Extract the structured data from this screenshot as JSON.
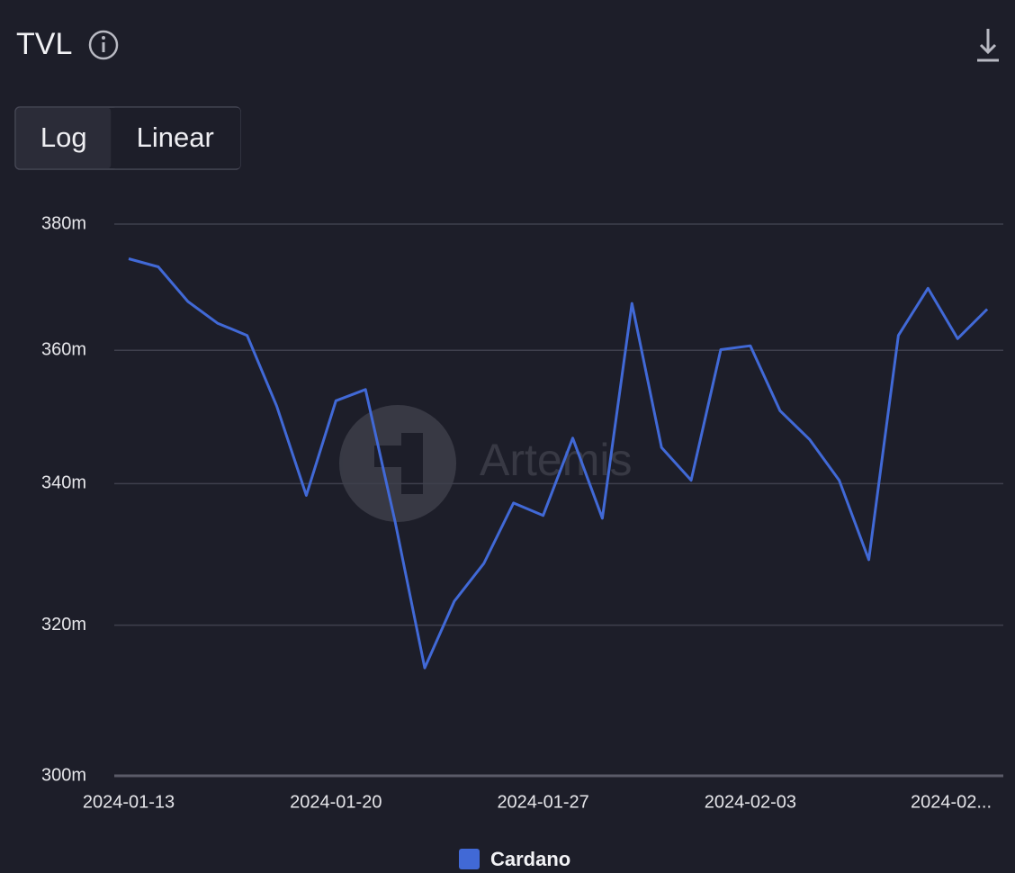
{
  "chart_data": {
    "type": "line",
    "title": "TVL",
    "categories": [
      "2024-01-13",
      "2024-01-14",
      "2024-01-15",
      "2024-01-16",
      "2024-01-17",
      "2024-01-18",
      "2024-01-19",
      "2024-01-20",
      "2024-01-21",
      "2024-01-22",
      "2024-01-23",
      "2024-01-24",
      "2024-01-25",
      "2024-01-26",
      "2024-01-27",
      "2024-01-28",
      "2024-01-29",
      "2024-01-30",
      "2024-01-31",
      "2024-02-01",
      "2024-02-02",
      "2024-02-03",
      "2024-02-04",
      "2024-02-05",
      "2024-02-06",
      "2024-02-07",
      "2024-02-08",
      "2024-02-09",
      "2024-02-10",
      "2024-02-11"
    ],
    "series": [
      {
        "name": "Cardano",
        "color": "#4169d6",
        "values": [
          374.4,
          373.1,
          367.6,
          364.2,
          362.3,
          351.5,
          338.3,
          352.3,
          354.0,
          334.5,
          314.2,
          323.3,
          328.6,
          337.2,
          335.4,
          346.7,
          335.0,
          367.3,
          345.3,
          340.5,
          360.1,
          360.7,
          350.8,
          346.5,
          340.5,
          329.1,
          362.3,
          369.7,
          361.8,
          366.4
        ]
      }
    ],
    "ylim": [
      300,
      380
    ],
    "yticks": [
      {
        "value": 300,
        "label": "300m"
      },
      {
        "value": 320,
        "label": "320m"
      },
      {
        "value": 340,
        "label": "340m"
      },
      {
        "value": 360,
        "label": "360m"
      },
      {
        "value": 380,
        "label": "380m"
      }
    ],
    "xticks": [
      "2024-01-13",
      "2024-01-20",
      "2024-01-27",
      "2024-02-03",
      {
        "value": "2024-02-10",
        "label": "2024-02..."
      }
    ],
    "log_scale": true,
    "grid": true,
    "legend": "bottom"
  },
  "controls": {
    "scale_options": [
      "Log",
      "Linear"
    ],
    "active": "Log"
  },
  "watermark": "Artemis"
}
